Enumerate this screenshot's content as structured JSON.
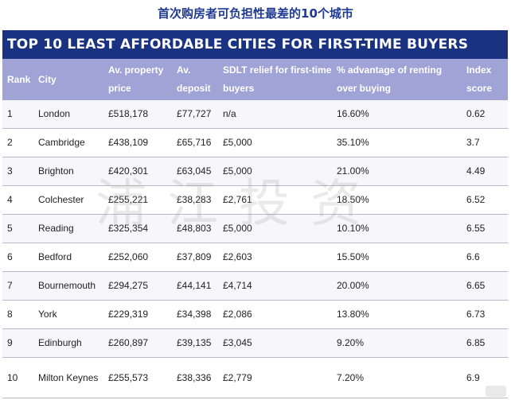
{
  "cn_title": "首次购房者可负担性最差的10个城市",
  "banner_title": "TOP 10 LEAST AFFORDABLE CITIES FOR FIRST-TIME BUYERS",
  "watermark": "浦江投资",
  "columns": {
    "rank": "Rank",
    "city": "City",
    "price": "Av. property price",
    "deposit": "Av. deposit",
    "sdlt": "SDLT relief for first-time buyers",
    "renting": "% advantage of renting over buying",
    "index": "Index score"
  },
  "rows": [
    {
      "rank": "1",
      "city": "London",
      "price": "£518,178",
      "deposit": "£77,727",
      "sdlt": "n/a",
      "renting": "16.60%",
      "index": "0.62"
    },
    {
      "rank": "2",
      "city": "Cambridge",
      "price": "£438,109",
      "deposit": "£65,716",
      "sdlt": "£5,000",
      "renting": "35.10%",
      "index": "3.7"
    },
    {
      "rank": "3",
      "city": "Brighton",
      "price": "£420,301",
      "deposit": "£63,045",
      "sdlt": "£5,000",
      "renting": "21.00%",
      "index": "4.49"
    },
    {
      "rank": "4",
      "city": "Colchester",
      "price": "£255,221",
      "deposit": "£38,283",
      "sdlt": "£2,761",
      "renting": "18.50%",
      "index": "6.52"
    },
    {
      "rank": "5",
      "city": "Reading",
      "price": "£325,354",
      "deposit": "£48,803",
      "sdlt": "£5,000",
      "renting": "10.10%",
      "index": "6.55"
    },
    {
      "rank": "6",
      "city": "Bedford",
      "price": "£252,060",
      "deposit": "£37,809",
      "sdlt": "£2,603",
      "renting": "15.50%",
      "index": "6.6"
    },
    {
      "rank": "7",
      "city": "Bournemouth",
      "price": "£294,275",
      "deposit": "£44,141",
      "sdlt": "£4,714",
      "renting": "20.00%",
      "index": "6.65"
    },
    {
      "rank": "8",
      "city": "York",
      "price": "£229,319",
      "deposit": "£34,398",
      "sdlt": "£2,086",
      "renting": "13.80%",
      "index": "6.73"
    },
    {
      "rank": "9",
      "city": "Edinburgh",
      "price": "£260,897",
      "deposit": "£39,135",
      "sdlt": "£3,045",
      "renting": "9.20%",
      "index": "6.85"
    },
    {
      "rank": "10",
      "city": "Milton Keynes",
      "price": "£255,573",
      "deposit": "£38,336",
      "sdlt": "£2,779",
      "renting": "7.20%",
      "index": "6.9"
    }
  ]
}
